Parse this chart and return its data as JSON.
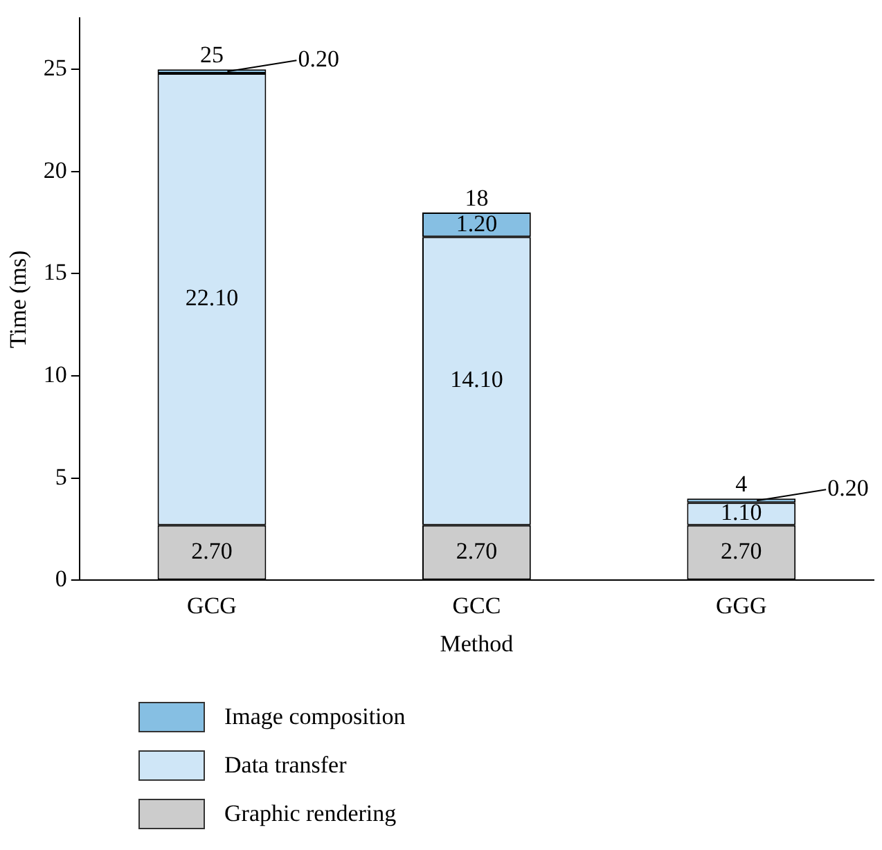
{
  "chart_data": {
    "type": "bar",
    "stacked": true,
    "xlabel": "Method",
    "ylabel": "Time (ms)",
    "categories": [
      "GCG",
      "GCC",
      "GGG"
    ],
    "series": [
      {
        "name": "Graphic rendering",
        "color": "#cccccc",
        "values": [
          2.7,
          2.7,
          2.7
        ],
        "value_labels": [
          "2.70",
          "2.70",
          "2.70"
        ]
      },
      {
        "name": "Data transfer",
        "color": "#cfe6f7",
        "values": [
          22.1,
          14.1,
          1.1
        ],
        "value_labels": [
          "22.10",
          "14.10",
          "1.10"
        ]
      },
      {
        "name": "Image composition",
        "color": "#86bfe3",
        "values": [
          0.2,
          1.2,
          0.2
        ],
        "value_labels": [
          "0.20",
          "1.20",
          "0.20"
        ]
      }
    ],
    "totals": [
      "25",
      "18",
      "4"
    ],
    "ylim": [
      0,
      27.5
    ],
    "yticks": [
      0,
      5,
      10,
      15,
      20,
      25
    ],
    "grid": false,
    "legend": "bottom"
  }
}
